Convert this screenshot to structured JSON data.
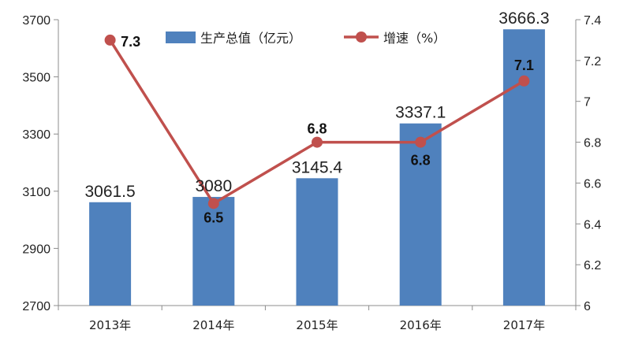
{
  "chart_data": {
    "type": "bar",
    "categories": [
      "2013年",
      "2014年",
      "2015年",
      "2016年",
      "2017年"
    ],
    "series": [
      {
        "name": "生产总值（亿元）",
        "type": "bar",
        "axis": "left",
        "values": [
          3061.5,
          3080,
          3145.4,
          3337.1,
          3666.3
        ],
        "labels": [
          "3061.5",
          "3080",
          "3145.4",
          "3337.1",
          "3666.3"
        ],
        "color": "#4f81bd"
      },
      {
        "name": "增速（%）",
        "type": "line",
        "axis": "right",
        "values": [
          7.3,
          6.5,
          6.8,
          6.8,
          7.1
        ],
        "labels": [
          "7.3",
          "6.5",
          "6.8",
          "6.8",
          "7.1"
        ],
        "color": "#c0504d"
      }
    ],
    "y_left": {
      "min": 2700,
      "max": 3700,
      "ticks": [
        2700,
        2900,
        3100,
        3300,
        3500,
        3700
      ],
      "tick_labels": [
        "2700",
        "2900",
        "3100",
        "3300",
        "3500",
        "3700"
      ]
    },
    "y_right": {
      "min": 6,
      "max": 7.4,
      "ticks": [
        6,
        6.2,
        6.4,
        6.6,
        6.8,
        7,
        7.2,
        7.4
      ],
      "tick_labels": [
        "6",
        "6.2",
        "6.4",
        "6.6",
        "6.8",
        "7",
        "7.2",
        "7.4"
      ]
    },
    "legend_position": "top",
    "grid": false
  }
}
